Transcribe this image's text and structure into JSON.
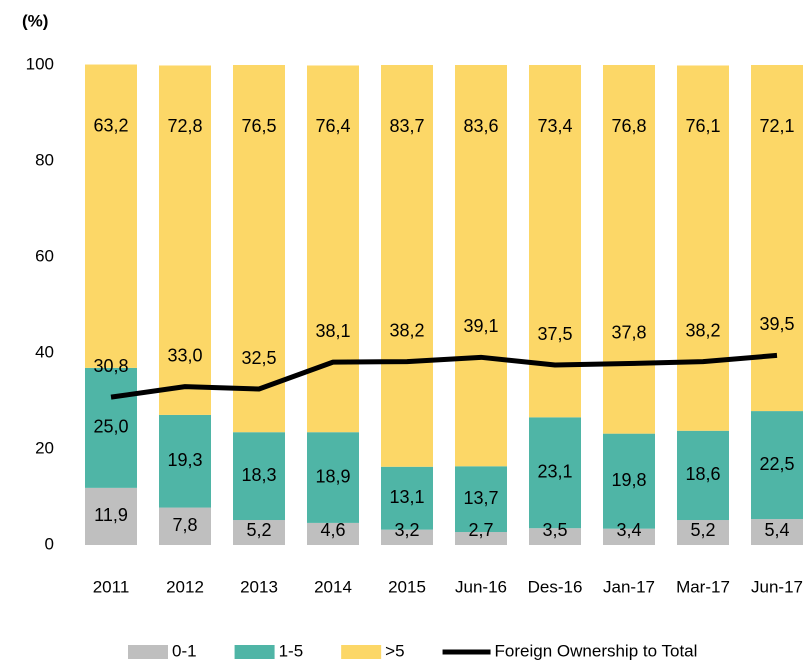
{
  "chart_data": {
    "type": "bar",
    "stacked": true,
    "y_label": "(%)",
    "categories": [
      "2011",
      "2012",
      "2013",
      "2014",
      "2015",
      "Jun-16",
      "Des-16",
      "Jan-17",
      "Mar-17",
      "Jun-17"
    ],
    "ylim": [
      0,
      100
    ],
    "yticks": [
      0,
      20,
      40,
      60,
      80,
      100
    ],
    "grid": false,
    "series": [
      {
        "name": "0-1",
        "color": "#bfbfbf",
        "values": [
          11.9,
          7.8,
          5.2,
          4.6,
          3.2,
          2.7,
          3.5,
          3.4,
          5.2,
          5.4
        ],
        "value_labels": [
          "11,9",
          "7,8",
          "5,2",
          "4,6",
          "3,2",
          "2,7",
          "3,5",
          "3,4",
          "5,2",
          "5,4"
        ]
      },
      {
        "name": "1-5",
        "color": "#4fb5a6",
        "values": [
          25.0,
          19.3,
          18.3,
          18.9,
          13.1,
          13.7,
          23.1,
          19.8,
          18.6,
          22.5
        ],
        "value_labels": [
          "25,0",
          "19,3",
          "18,3",
          "18,9",
          "13,1",
          "13,7",
          "23,1",
          "19,8",
          "18,6",
          "22,5"
        ]
      },
      {
        "name": ">5",
        "color": "#fcd767",
        "values": [
          63.2,
          72.8,
          76.5,
          76.4,
          83.7,
          83.6,
          73.4,
          76.8,
          76.1,
          72.1
        ],
        "value_labels": [
          "63,2",
          "72,8",
          "76,5",
          "76,4",
          "83,7",
          "83,6",
          "73,4",
          "76,8",
          "76,1",
          "72,1"
        ]
      },
      {
        "name": "Foreign Ownership to Total",
        "type": "line",
        "color": "#000000",
        "values": [
          30.8,
          33.0,
          32.5,
          38.1,
          38.2,
          39.1,
          37.5,
          37.8,
          38.2,
          39.5
        ],
        "value_labels": [
          "30,8",
          "33,0",
          "32,5",
          "38,1",
          "38,2",
          "39,1",
          "37,5",
          "37,8",
          "38,2",
          "39,5"
        ]
      }
    ]
  }
}
